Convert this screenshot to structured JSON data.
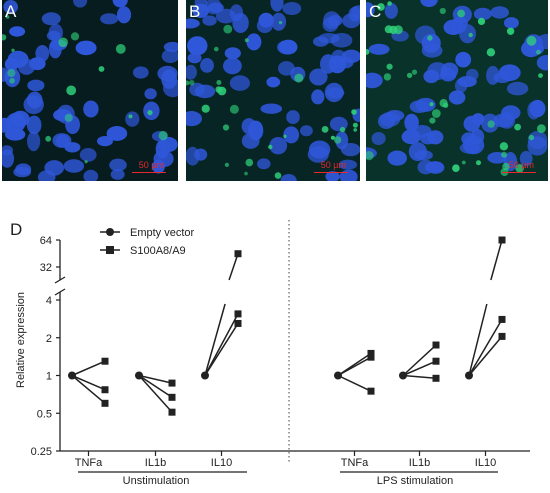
{
  "panels": [
    {
      "letter": "A",
      "scale_label": "50 µm",
      "glow": 0.15
    },
    {
      "letter": "B",
      "scale_label": "50 µm",
      "glow": 0.35
    },
    {
      "letter": "C",
      "scale_label": "50 µm",
      "glow": 0.6
    }
  ],
  "colors": {
    "nucleus": "#2f57d9",
    "background": "#06141c",
    "green": "#2fd07a",
    "scale": "#e8282d",
    "ink": "#222222"
  },
  "chart_data": {
    "type": "scatter",
    "panel_label": "D",
    "ylabel": "Relative expression",
    "y_scale": "log2",
    "y_ticks": [
      "0.25",
      "0.5",
      "1",
      "2",
      "4",
      "32",
      "64"
    ],
    "legend": [
      {
        "name": "Empty vector",
        "marker": "circle"
      },
      {
        "name": "S100A8/A9",
        "marker": "square"
      }
    ],
    "groups": [
      {
        "label": "Unstimulation",
        "categories": [
          {
            "name": "TNFa",
            "empty_vector": [
              1,
              1,
              1
            ],
            "s100a8_a9": [
              1.3,
              0.77,
              0.6
            ]
          },
          {
            "name": "IL1b",
            "empty_vector": [
              1,
              1,
              1
            ],
            "s100a8_a9": [
              0.87,
              0.67,
              0.51
            ]
          },
          {
            "name": "IL10",
            "empty_vector": [
              1,
              1,
              1
            ],
            "s100a8_a9": [
              45,
              3.1,
              2.6
            ]
          }
        ]
      },
      {
        "label": "LPS stimulation",
        "categories": [
          {
            "name": "TNFa",
            "empty_vector": [
              1,
              1,
              1
            ],
            "s100a8_a9": [
              1.5,
              1.4,
              0.75
            ]
          },
          {
            "name": "IL1b",
            "empty_vector": [
              1,
              1,
              1
            ],
            "s100a8_a9": [
              1.75,
              1.3,
              0.95
            ]
          },
          {
            "name": "IL10",
            "empty_vector": [
              1,
              1,
              1
            ],
            "s100a8_a9": [
              64,
              2.8,
              2.05
            ]
          }
        ]
      }
    ]
  }
}
